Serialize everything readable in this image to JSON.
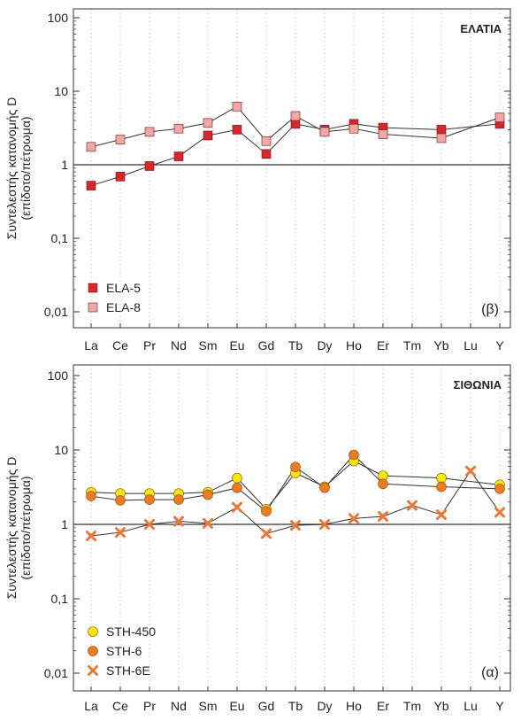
{
  "ylabel_line1": "Συντελεστής κατανομής D",
  "ylabel_line2": "(επίδοτο/πέτρωμα)",
  "chart_data": [
    {
      "type": "line",
      "title": "ΕΛΑΤΙΑ",
      "panel_label": "(β)",
      "yscale": "log",
      "ylim": [
        0.005,
        100
      ],
      "yticks": [
        "0,01",
        "0,1",
        "1",
        "10",
        "100"
      ],
      "reference_line": 1,
      "legend_position": "bottom-left",
      "categories": [
        "La",
        "Ce",
        "Pr",
        "Nd",
        "Sm",
        "Eu",
        "Gd",
        "Tb",
        "Dy",
        "Ho",
        "Er",
        "Tm",
        "Yb",
        "Lu",
        "Y"
      ],
      "series": [
        {
          "name": "ELA-5",
          "color": "#d9262b",
          "marker": "square",
          "values": [
            0.52,
            0.69,
            0.96,
            1.3,
            2.5,
            3.0,
            1.4,
            3.6,
            3.0,
            3.6,
            3.2,
            null,
            3.0,
            null,
            3.6
          ]
        },
        {
          "name": "ELA-8",
          "color": "#f2a7a7",
          "marker": "square",
          "values": [
            1.75,
            2.2,
            2.8,
            3.1,
            3.7,
            6.2,
            2.1,
            4.6,
            2.8,
            3.1,
            2.6,
            null,
            2.3,
            null,
            4.4
          ]
        }
      ]
    },
    {
      "type": "line",
      "title": "ΣΙΘΩΝΙΑ",
      "panel_label": "(α)",
      "yscale": "log",
      "ylim": [
        0.005,
        100
      ],
      "yticks": [
        "0,01",
        "0,1",
        "1",
        "10",
        "100"
      ],
      "reference_line": 1,
      "legend_position": "bottom-left",
      "categories": [
        "La",
        "Ce",
        "Pr",
        "Nd",
        "Sm",
        "Eu",
        "Gd",
        "Tb",
        "Dy",
        "Ho",
        "Er",
        "Tm",
        "Yb",
        "Lu",
        "Y"
      ],
      "series": [
        {
          "name": "STH-450",
          "color": "#ffe600",
          "marker": "circle",
          "values": [
            2.7,
            2.6,
            2.6,
            2.6,
            2.7,
            4.2,
            1.6,
            4.9,
            3.2,
            7.1,
            4.5,
            null,
            4.2,
            null,
            3.4
          ]
        },
        {
          "name": "STH-6",
          "color": "#ee7a22",
          "marker": "circle",
          "values": [
            2.4,
            2.1,
            2.15,
            2.15,
            2.5,
            3.1,
            1.5,
            5.9,
            3.1,
            8.6,
            3.5,
            null,
            3.2,
            null,
            3.0
          ]
        },
        {
          "name": "STH-6E",
          "color": "#e8793a",
          "marker": "x",
          "values": [
            0.7,
            0.78,
            1.0,
            1.1,
            1.03,
            1.7,
            0.75,
            0.97,
            1.0,
            1.2,
            1.28,
            1.8,
            1.35,
            5.2,
            1.45
          ]
        }
      ]
    }
  ]
}
